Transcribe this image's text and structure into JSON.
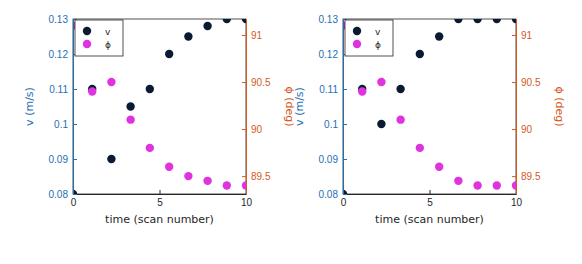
{
  "chart_data": [
    {
      "type": "scatter",
      "x": [
        0,
        1.11,
        2.22,
        3.33,
        4.44,
        5.56,
        6.67,
        7.78,
        8.89,
        10
      ],
      "series": [
        {
          "name": "v",
          "color": "#0b1a33",
          "marker": "circle",
          "values": [
            0.08,
            0.11,
            0.09,
            0.105,
            0.11,
            0.12,
            0.125,
            0.128,
            0.13,
            0.13
          ]
        },
        {
          "name": "ϕ",
          "color": "#e033e0",
          "marker": "circle",
          "axis": "y2",
          "values": [
            91.1,
            90.4,
            90.5,
            90.1,
            89.8,
            89.6,
            89.5,
            89.45,
            89.4,
            89.4
          ]
        }
      ],
      "xlabel": "time (scan number)",
      "ylabel": "v (m/s)",
      "y2label": "ϕ (deg)",
      "xlim": [
        0,
        10
      ],
      "xticks": [
        0,
        5,
        10
      ],
      "ylim": [
        0.08,
        0.13
      ],
      "yticks": [
        0.08,
        0.09,
        0.1,
        0.11,
        0.12,
        0.13
      ],
      "y2lim": [
        89.31,
        91.17
      ],
      "y2ticks": [
        89.5,
        90,
        90.5,
        91
      ],
      "legend": "upper left"
    },
    {
      "type": "scatter",
      "x": [
        0,
        1.11,
        2.22,
        3.33,
        4.44,
        5.56,
        6.67,
        7.78,
        8.89,
        10
      ],
      "series": [
        {
          "name": "v",
          "color": "#0b1a33",
          "marker": "circle",
          "values": [
            0.08,
            0.11,
            0.1,
            0.11,
            0.12,
            0.125,
            0.13,
            0.13,
            0.13,
            0.13
          ]
        },
        {
          "name": "ϕ",
          "color": "#e033e0",
          "marker": "circle",
          "axis": "y2",
          "values": [
            91.1,
            90.4,
            90.5,
            90.1,
            89.8,
            89.6,
            89.45,
            89.4,
            89.4,
            89.4
          ]
        }
      ],
      "xlabel": "time (scan number)",
      "ylabel": "v (m/s)",
      "y2label": "ϕ (deg)",
      "xlim": [
        0,
        10
      ],
      "xticks": [
        0,
        5,
        10
      ],
      "ylim": [
        0.08,
        0.13
      ],
      "yticks": [
        0.08,
        0.09,
        0.1,
        0.11,
        0.12,
        0.13
      ],
      "y2lim": [
        89.31,
        91.17
      ],
      "y2ticks": [
        89.5,
        90,
        90.5,
        91
      ],
      "legend": "upper left"
    }
  ]
}
